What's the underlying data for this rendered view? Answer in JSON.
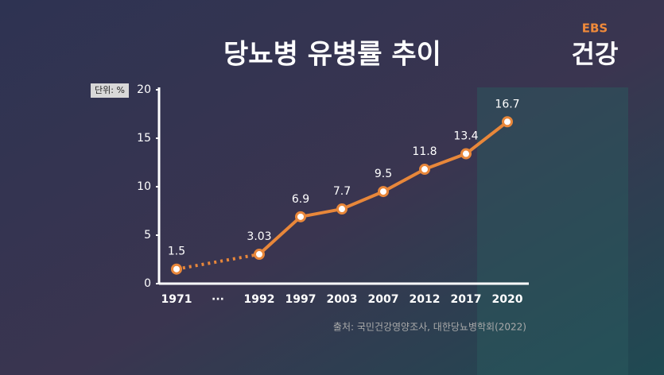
{
  "chart_data": {
    "type": "line",
    "title": "당뇨병 유병률 추이",
    "unit_label": "단위: %",
    "source": "출처: 국민건강영양조사, 대한당뇨병학회(2022)",
    "logo": {
      "top": "EBS",
      "bottom": "건강"
    },
    "categories": [
      "1971",
      "···",
      "1992",
      "1997",
      "2003",
      "2007",
      "2012",
      "2017",
      "2020"
    ],
    "values": [
      1.5,
      null,
      3.03,
      6.9,
      7.7,
      9.5,
      11.8,
      13.4,
      16.7
    ],
    "color": "#e8873a",
    "ylim": [
      0,
      20
    ],
    "yticks": [
      0,
      5,
      10,
      15,
      20
    ],
    "grid": false
  }
}
